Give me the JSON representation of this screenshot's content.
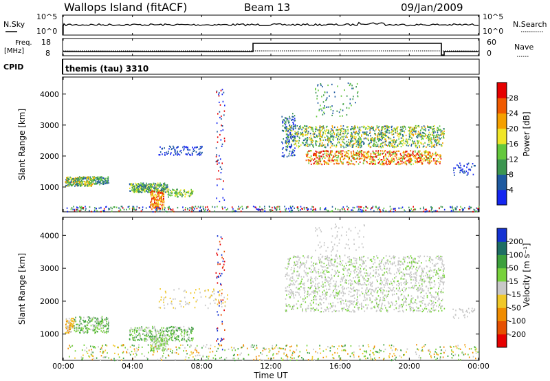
{
  "header": {
    "site": "Wallops Island (fitACF)",
    "beam": "Beam 13",
    "date": "09/Jan/2009"
  },
  "top_panels": {
    "nsky_label": "N.Sky",
    "nsearch_label": "N.Search",
    "noise_ticks": [
      "10^5",
      "10^0"
    ],
    "freq_label": "Freq.",
    "freq_unit": "[MHz]",
    "freq_ticks": [
      "18",
      "8"
    ],
    "nave_label": "Nave",
    "nave_ticks": [
      "60",
      "0"
    ],
    "cpid_label": "CPID",
    "cpid_value": "themis (tau) 3310"
  },
  "chart_data": [
    {
      "type": "heatmap",
      "ylabel": "Slant Range [km]",
      "xlabel": "",
      "x_ticks": [
        "00:00",
        "04:00",
        "08:00",
        "12:00",
        "16:00",
        "20:00",
        "00:00"
      ],
      "y_ticks": [
        "1000",
        "2000",
        "3000",
        "4000"
      ],
      "ylim": [
        200,
        4550
      ],
      "colorbar_label": "Power [dB]",
      "colorbar_ticks": [
        "4",
        "8",
        "12",
        "16",
        "20",
        "24",
        "28"
      ],
      "colors": [
        "#1426f0",
        "#1e5aa0",
        "#3c9650",
        "#64c83c",
        "#f0e628",
        "#f5a000",
        "#f05a00",
        "#e60000"
      ]
    },
    {
      "type": "heatmap",
      "ylabel": "Slant Range [km]",
      "xlabel": "Time UT",
      "x_ticks": [
        "00:00",
        "04:00",
        "08:00",
        "12:00",
        "16:00",
        "20:00",
        "00:00"
      ],
      "y_ticks": [
        "1000",
        "2000",
        "3000",
        "4000"
      ],
      "ylim": [
        200,
        4550
      ],
      "colorbar_label": "Velocity [m s⁻¹]",
      "colorbar_ticks": [
        "200",
        "100",
        "50",
        "15",
        "-15",
        "-50",
        "-100",
        "-200"
      ],
      "colors": [
        "#1432d2",
        "#1e6e64",
        "#3ca03c",
        "#78d23c",
        "#c8c8c8",
        "#f0c828",
        "#f08c00",
        "#e65000",
        "#e60000"
      ]
    }
  ]
}
